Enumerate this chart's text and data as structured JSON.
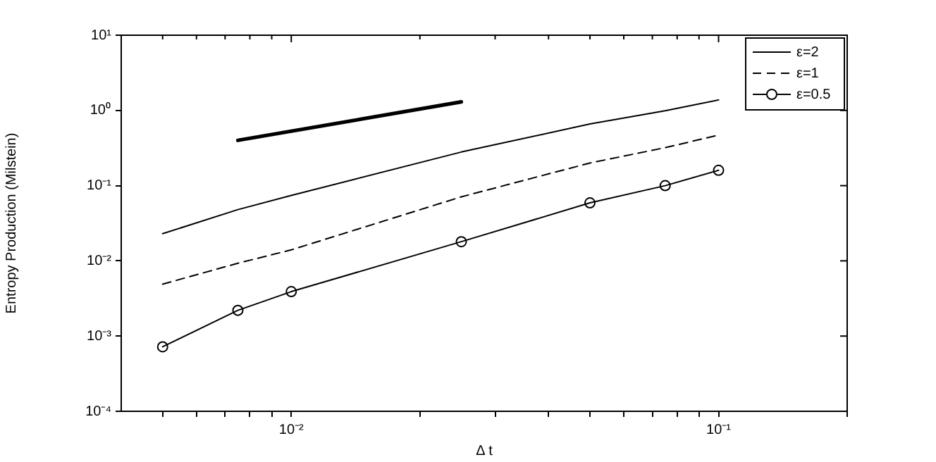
{
  "chart_data": {
    "type": "line",
    "xlabel": "Δ t",
    "ylabel": "Entropy Production (Milstein)",
    "log": "xy",
    "grid": false,
    "legend": "top right",
    "xlim": [
      0.004,
      0.2
    ],
    "ylim": [
      0.0001,
      10
    ],
    "xticks": [
      {
        "value": 0.005,
        "label": null
      },
      {
        "value": 0.006,
        "label": null
      },
      {
        "value": 0.007,
        "label": null
      },
      {
        "value": 0.008,
        "label": null
      },
      {
        "value": 0.009,
        "label": null
      },
      {
        "value": 0.01,
        "label": "10⁻²"
      },
      {
        "value": 0.02,
        "label": null
      },
      {
        "value": 0.03,
        "label": null
      },
      {
        "value": 0.04,
        "label": null
      },
      {
        "value": 0.05,
        "label": null
      },
      {
        "value": 0.06,
        "label": null
      },
      {
        "value": 0.07,
        "label": null
      },
      {
        "value": 0.08,
        "label": null
      },
      {
        "value": 0.09,
        "label": null
      },
      {
        "value": 0.1,
        "label": "10⁻¹"
      },
      {
        "value": 0.2,
        "label": null
      }
    ],
    "yticks": [
      {
        "value": 0.0001,
        "label": "10⁻⁴"
      },
      {
        "value": 0.001,
        "label": "10⁻³"
      },
      {
        "value": 0.01,
        "label": "10⁻²"
      },
      {
        "value": 0.1,
        "label": "10⁻¹"
      },
      {
        "value": 1,
        "label": "10⁰"
      },
      {
        "value": 10,
        "label": "10¹"
      }
    ],
    "x": [
      0.005,
      0.0075,
      0.01,
      0.025,
      0.05,
      0.075,
      0.1
    ],
    "series": [
      {
        "name": "ε=2",
        "color": "#000000",
        "marker": "none",
        "line_style": "solid",
        "values": [
          0.023,
          0.048,
          0.074,
          0.28,
          0.66,
          0.99,
          1.38
        ]
      },
      {
        "name": "ε=1",
        "color": "#000000",
        "marker": "none",
        "line_style": "dashed",
        "values": [
          0.0049,
          0.0093,
          0.014,
          0.071,
          0.2,
          0.32,
          0.47
        ]
      },
      {
        "name": "ε=0.5",
        "color": "#000000",
        "marker": "circle",
        "line_style": "solid",
        "values": [
          0.00072,
          0.0022,
          0.0039,
          0.018,
          0.059,
          0.1,
          0.16
        ]
      },
      {
        "color": "#000000",
        "marker": "none",
        "line_style": "solid",
        "x": [
          0.0075,
          0.025
        ],
        "values": [
          0.4,
          1.3
        ]
      }
    ]
  }
}
